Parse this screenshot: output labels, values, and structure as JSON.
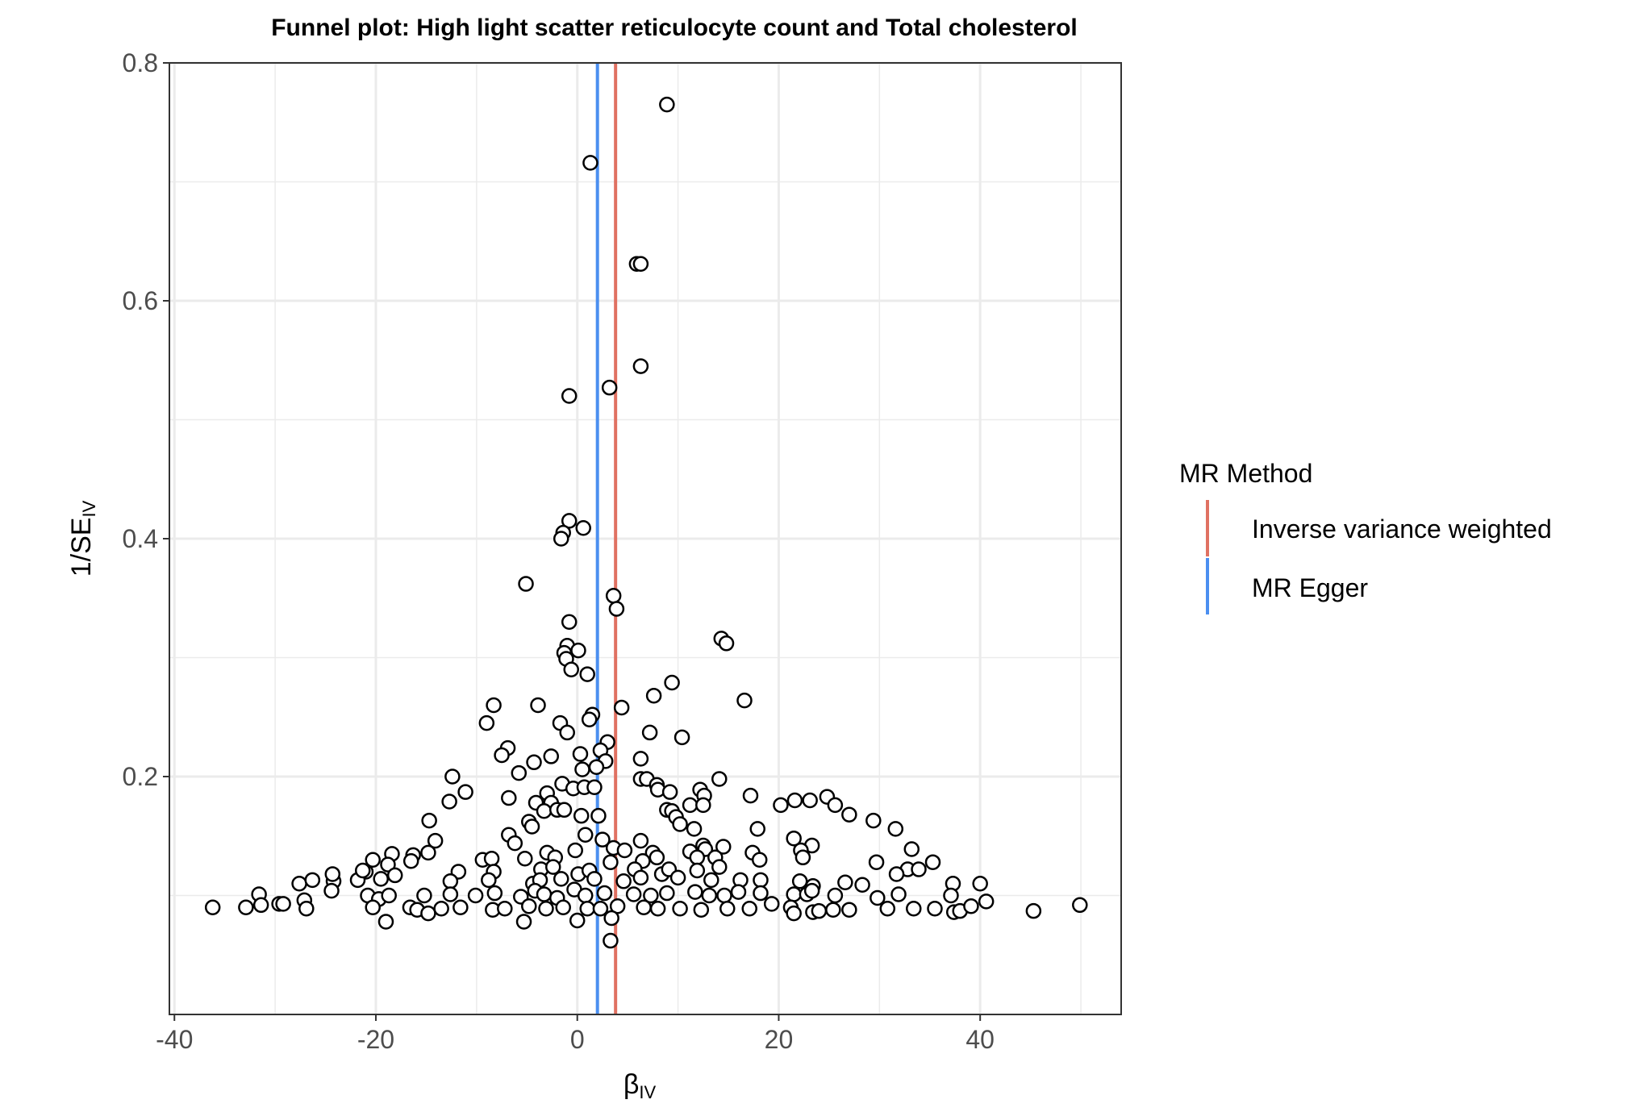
{
  "chart_data": {
    "type": "scatter",
    "title": "Funnel plot: High light scatter reticulocyte count and Total cholesterol",
    "xlabel": "β",
    "xlabel_sub": "IV",
    "ylabel": "1/SE",
    "ylabel_sub": "IV",
    "xlim": [
      -40.5,
      54
    ],
    "ylim": [
      0.0,
      0.8
    ],
    "x_ticks": [
      -40,
      -20,
      0,
      20,
      40
    ],
    "x_tick_labels": [
      "-40",
      "-20",
      "0",
      "20",
      "40"
    ],
    "y_ticks": [
      0.2,
      0.4,
      0.6,
      0.8
    ],
    "y_tick_labels": [
      "0.2",
      "0.4",
      "0.6",
      "0.8"
    ],
    "grid": true,
    "legend": {
      "title": "MR Method",
      "placement": "right",
      "entries": [
        {
          "name": "Inverse variance weighted",
          "color": "#e07162"
        },
        {
          "name": "MR Egger",
          "color": "#4b8ff0"
        }
      ]
    },
    "lines": [
      {
        "name": "Inverse variance weighted",
        "x": 3.8,
        "color": "#e07162"
      },
      {
        "name": "MR Egger",
        "x": 2.0,
        "color": "#4b8ff0"
      }
    ],
    "points": [
      [
        8.9,
        0.765
      ],
      [
        1.3,
        0.716
      ],
      [
        5.9,
        0.631
      ],
      [
        6.3,
        0.631
      ],
      [
        6.3,
        0.545
      ],
      [
        3.2,
        0.527
      ],
      [
        -0.8,
        0.52
      ],
      [
        -0.8,
        0.415
      ],
      [
        0.6,
        0.409
      ],
      [
        -1.4,
        0.405
      ],
      [
        -1.6,
        0.4
      ],
      [
        -5.1,
        0.362
      ],
      [
        3.6,
        0.352
      ],
      [
        3.9,
        0.341
      ],
      [
        -0.8,
        0.33
      ],
      [
        14.3,
        0.316
      ],
      [
        14.8,
        0.312
      ],
      [
        -1.0,
        0.31
      ],
      [
        0.1,
        0.306
      ],
      [
        -1.3,
        0.304
      ],
      [
        -1.1,
        0.299
      ],
      [
        -0.6,
        0.29
      ],
      [
        1.0,
        0.286
      ],
      [
        9.4,
        0.279
      ],
      [
        7.6,
        0.268
      ],
      [
        16.6,
        0.264
      ],
      [
        -8.3,
        0.26
      ],
      [
        -3.9,
        0.26
      ],
      [
        4.4,
        0.258
      ],
      [
        1.5,
        0.252
      ],
      [
        1.2,
        0.248
      ],
      [
        -9.0,
        0.245
      ],
      [
        -1.7,
        0.245
      ],
      [
        -1.0,
        0.237
      ],
      [
        7.2,
        0.237
      ],
      [
        10.4,
        0.233
      ],
      [
        3.0,
        0.229
      ],
      [
        -6.9,
        0.224
      ],
      [
        2.3,
        0.222
      ],
      [
        -7.5,
        0.218
      ],
      [
        0.3,
        0.219
      ],
      [
        -2.6,
        0.217
      ],
      [
        6.3,
        0.215
      ],
      [
        -4.3,
        0.212
      ],
      [
        2.8,
        0.213
      ],
      [
        1.9,
        0.208
      ],
      [
        0.5,
        0.206
      ],
      [
        -5.8,
        0.203
      ],
      [
        -12.4,
        0.2
      ],
      [
        6.3,
        0.198
      ],
      [
        6.9,
        0.198
      ],
      [
        14.1,
        0.198
      ],
      [
        -1.5,
        0.194
      ],
      [
        -0.4,
        0.19
      ],
      [
        0.7,
        0.191
      ],
      [
        1.7,
        0.191
      ],
      [
        7.9,
        0.193
      ],
      [
        12.2,
        0.189
      ],
      [
        -11.1,
        0.187
      ],
      [
        -3.0,
        0.186
      ],
      [
        8.0,
        0.189
      ],
      [
        9.2,
        0.187
      ],
      [
        12.6,
        0.184
      ],
      [
        17.2,
        0.184
      ],
      [
        -6.8,
        0.182
      ],
      [
        -4.1,
        0.178
      ],
      [
        -2.6,
        0.178
      ],
      [
        24.8,
        0.183
      ],
      [
        21.6,
        0.18
      ],
      [
        23.1,
        0.18
      ],
      [
        -12.7,
        0.179
      ],
      [
        11.2,
        0.176
      ],
      [
        12.5,
        0.176
      ],
      [
        20.2,
        0.176
      ],
      [
        25.6,
        0.176
      ],
      [
        -3.3,
        0.171
      ],
      [
        -2.0,
        0.172
      ],
      [
        -1.3,
        0.172
      ],
      [
        8.9,
        0.172
      ],
      [
        9.4,
        0.171
      ],
      [
        0.4,
        0.167
      ],
      [
        2.1,
        0.167
      ],
      [
        27.0,
        0.168
      ],
      [
        -14.7,
        0.163
      ],
      [
        -4.8,
        0.162
      ],
      [
        9.8,
        0.166
      ],
      [
        10.2,
        0.16
      ],
      [
        29.4,
        0.163
      ],
      [
        -4.5,
        0.158
      ],
      [
        11.6,
        0.156
      ],
      [
        17.9,
        0.156
      ],
      [
        31.6,
        0.156
      ],
      [
        -14.1,
        0.146
      ],
      [
        -6.8,
        0.151
      ],
      [
        0.8,
        0.151
      ],
      [
        2.5,
        0.147
      ],
      [
        6.3,
        0.146
      ],
      [
        21.5,
        0.148
      ],
      [
        -6.2,
        0.144
      ],
      [
        3.6,
        0.14
      ],
      [
        4.7,
        0.138
      ],
      [
        12.5,
        0.142
      ],
      [
        14.5,
        0.141
      ],
      [
        23.3,
        0.142
      ],
      [
        33.2,
        0.139
      ],
      [
        -14.8,
        0.136
      ],
      [
        -18.4,
        0.135
      ],
      [
        -16.3,
        0.134
      ],
      [
        -3.0,
        0.136
      ],
      [
        -0.2,
        0.138
      ],
      [
        7.5,
        0.136
      ],
      [
        11.2,
        0.137
      ],
      [
        12.7,
        0.139
      ],
      [
        17.4,
        0.136
      ],
      [
        22.2,
        0.138
      ],
      [
        -20.3,
        0.13
      ],
      [
        -18.8,
        0.126
      ],
      [
        -16.5,
        0.129
      ],
      [
        -9.4,
        0.13
      ],
      [
        -8.5,
        0.131
      ],
      [
        -5.2,
        0.131
      ],
      [
        -2.2,
        0.132
      ],
      [
        3.3,
        0.128
      ],
      [
        6.5,
        0.129
      ],
      [
        7.9,
        0.132
      ],
      [
        11.9,
        0.132
      ],
      [
        13.7,
        0.132
      ],
      [
        18.1,
        0.13
      ],
      [
        22.4,
        0.132
      ],
      [
        29.7,
        0.128
      ],
      [
        35.3,
        0.128
      ],
      [
        -21.0,
        0.12
      ],
      [
        -18.1,
        0.117
      ],
      [
        -11.8,
        0.12
      ],
      [
        -8.3,
        0.12
      ],
      [
        -3.6,
        0.122
      ],
      [
        -2.4,
        0.124
      ],
      [
        0.1,
        0.118
      ],
      [
        1.2,
        0.121
      ],
      [
        5.7,
        0.122
      ],
      [
        8.4,
        0.118
      ],
      [
        9.1,
        0.122
      ],
      [
        11.9,
        0.121
      ],
      [
        14.1,
        0.124
      ],
      [
        32.8,
        0.122
      ],
      [
        31.7,
        0.118
      ],
      [
        33.9,
        0.122
      ],
      [
        -21.8,
        0.113
      ],
      [
        -19.5,
        0.114
      ],
      [
        -12.6,
        0.112
      ],
      [
        -8.8,
        0.113
      ],
      [
        -4.4,
        0.11
      ],
      [
        -3.7,
        0.113
      ],
      [
        -1.6,
        0.114
      ],
      [
        1.7,
        0.114
      ],
      [
        4.6,
        0.112
      ],
      [
        6.3,
        0.115
      ],
      [
        10.0,
        0.115
      ],
      [
        13.3,
        0.113
      ],
      [
        16.2,
        0.113
      ],
      [
        18.2,
        0.113
      ],
      [
        22.1,
        0.112
      ],
      [
        23.4,
        0.108
      ],
      [
        26.6,
        0.111
      ],
      [
        28.3,
        0.109
      ],
      [
        37.3,
        0.11
      ],
      [
        40.0,
        0.11
      ],
      [
        -27.6,
        0.11
      ],
      [
        -26.3,
        0.113
      ],
      [
        -24.2,
        0.112
      ],
      [
        -24.3,
        0.118
      ],
      [
        -21.3,
        0.121
      ],
      [
        -24.4,
        0.104
      ],
      [
        -20.8,
        0.1
      ],
      [
        -19.7,
        0.097
      ],
      [
        -18.7,
        0.1
      ],
      [
        -15.2,
        0.1
      ],
      [
        -12.6,
        0.101
      ],
      [
        -10.1,
        0.1
      ],
      [
        -8.2,
        0.102
      ],
      [
        -5.6,
        0.099
      ],
      [
        -4.2,
        0.104
      ],
      [
        -3.3,
        0.101
      ],
      [
        -2.0,
        0.098
      ],
      [
        -0.3,
        0.105
      ],
      [
        0.8,
        0.1
      ],
      [
        2.7,
        0.102
      ],
      [
        5.6,
        0.101
      ],
      [
        7.3,
        0.1
      ],
      [
        8.9,
        0.102
      ],
      [
        11.7,
        0.103
      ],
      [
        13.1,
        0.1
      ],
      [
        14.6,
        0.1
      ],
      [
        16.0,
        0.103
      ],
      [
        18.2,
        0.102
      ],
      [
        21.5,
        0.101
      ],
      [
        22.8,
        0.101
      ],
      [
        23.3,
        0.104
      ],
      [
        25.6,
        0.1
      ],
      [
        29.8,
        0.098
      ],
      [
        31.9,
        0.101
      ],
      [
        37.1,
        0.1
      ],
      [
        -31.6,
        0.101
      ],
      [
        -27.1,
        0.096
      ],
      [
        -29.6,
        0.093
      ],
      [
        -36.2,
        0.09
      ],
      [
        -32.9,
        0.09
      ],
      [
        -31.4,
        0.092
      ],
      [
        -29.2,
        0.093
      ],
      [
        -26.9,
        0.089
      ],
      [
        -20.3,
        0.09
      ],
      [
        -16.6,
        0.09
      ],
      [
        -15.9,
        0.088
      ],
      [
        -14.8,
        0.085
      ],
      [
        -13.5,
        0.089
      ],
      [
        -11.6,
        0.09
      ],
      [
        -8.4,
        0.088
      ],
      [
        -7.2,
        0.089
      ],
      [
        -4.8,
        0.091
      ],
      [
        -3.1,
        0.089
      ],
      [
        -1.4,
        0.09
      ],
      [
        1.0,
        0.089
      ],
      [
        2.3,
        0.089
      ],
      [
        4.0,
        0.091
      ],
      [
        6.6,
        0.09
      ],
      [
        8.0,
        0.089
      ],
      [
        10.2,
        0.089
      ],
      [
        12.3,
        0.088
      ],
      [
        14.9,
        0.089
      ],
      [
        17.1,
        0.089
      ],
      [
        19.3,
        0.093
      ],
      [
        21.2,
        0.09
      ],
      [
        21.5,
        0.085
      ],
      [
        23.4,
        0.086
      ],
      [
        24.0,
        0.087
      ],
      [
        25.4,
        0.088
      ],
      [
        27.0,
        0.088
      ],
      [
        30.8,
        0.089
      ],
      [
        33.4,
        0.089
      ],
      [
        35.5,
        0.089
      ],
      [
        37.4,
        0.086
      ],
      [
        38.0,
        0.087
      ],
      [
        39.1,
        0.091
      ],
      [
        40.6,
        0.095
      ],
      [
        45.3,
        0.087
      ],
      [
        49.9,
        0.092
      ],
      [
        -19.0,
        0.078
      ],
      [
        -5.3,
        0.078
      ],
      [
        0.0,
        0.079
      ],
      [
        3.4,
        0.081
      ],
      [
        3.3,
        0.062
      ]
    ],
    "point_style": {
      "fill": "#ffffff",
      "stroke": "#000000"
    }
  }
}
